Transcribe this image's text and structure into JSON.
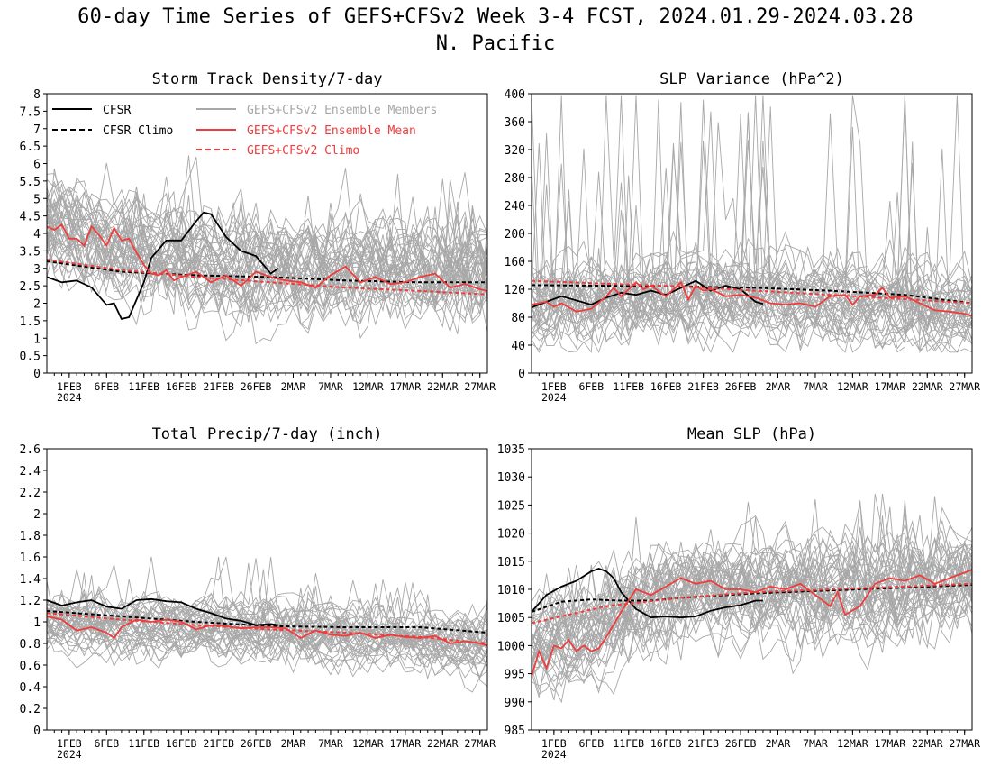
{
  "figure": {
    "title": "60-day Time Series of GEFS+CFSv2 Week 3-4 FCST, 2024.01.29-2024.03.28",
    "subtitle": "N. Pacific"
  },
  "chart_data": [
    {
      "type": "line",
      "title": "Storm Track Density/7-day",
      "x_tick_labels": [
        "1FEB",
        "6FEB",
        "11FEB",
        "16FEB",
        "21FEB",
        "26FEB",
        "2MAR",
        "7MAR",
        "12MAR",
        "17MAR",
        "22MAR",
        "27MAR"
      ],
      "x_tick_days": [
        3,
        8,
        13,
        18,
        23,
        28,
        33,
        38,
        43,
        48,
        53,
        58
      ],
      "x_year_label": "2024",
      "xlim": [
        0,
        59
      ],
      "ylim": [
        0,
        8
      ],
      "y_ticks": [
        0,
        0.5,
        1,
        1.5,
        2,
        2.5,
        3,
        3.5,
        4,
        4.5,
        5,
        5.5,
        6,
        6.5,
        7,
        7.5,
        8
      ],
      "y_tick_labels": [
        "0",
        "0.5",
        "1",
        "1.5",
        "2",
        "2.5",
        "3",
        "3.5",
        "4",
        "4.5",
        "5",
        "5.5",
        "6",
        "6.5",
        "7",
        "7.5",
        "8"
      ],
      "legend": [
        {
          "label": "CFSR",
          "color": "#000000",
          "dash": false
        },
        {
          "label": "CFSR Climo",
          "color": "#000000",
          "dash": true
        },
        {
          "label": "GEFS+CFSv2 Ensemble Members",
          "color": "#a8a8a8",
          "dash": false
        },
        {
          "label": "GEFS+CFSv2 Ensemble Mean",
          "color": "#f03c3c",
          "dash": false
        },
        {
          "label": "GEFS+CFSv2 Climo",
          "color": "#f03c3c",
          "dash": true
        }
      ],
      "series": [
        {
          "name": "CFSR",
          "color": "#000000",
          "dash": false,
          "x": [
            0,
            2,
            4,
            6,
            8,
            9,
            10,
            11,
            12,
            13,
            14,
            16,
            18,
            20,
            21,
            22,
            24,
            26,
            28,
            30,
            31
          ],
          "y": [
            2.75,
            2.6,
            2.65,
            2.45,
            1.95,
            2.0,
            1.55,
            1.6,
            2.1,
            2.6,
            3.3,
            3.8,
            3.8,
            4.35,
            4.6,
            4.55,
            3.9,
            3.5,
            3.35,
            2.85,
            3.0
          ]
        },
        {
          "name": "CFSR Climo",
          "color": "#000000",
          "dash": true,
          "x": [
            0,
            10,
            20,
            30,
            40,
            50,
            59
          ],
          "y": [
            3.2,
            2.9,
            2.8,
            2.75,
            2.65,
            2.6,
            2.6
          ]
        },
        {
          "name": "GEFS+CFSv2 Ensemble Mean",
          "color": "#f03c3c",
          "dash": false,
          "x": [
            0,
            1,
            2,
            3,
            4,
            5,
            6,
            7,
            8,
            9,
            10,
            11,
            12,
            13,
            14,
            15,
            16,
            17,
            18,
            20,
            22,
            24,
            26,
            28,
            30,
            32,
            34,
            36,
            38,
            40,
            42,
            44,
            46,
            48,
            50,
            52,
            54,
            56,
            58,
            59
          ],
          "y": [
            4.2,
            4.1,
            4.25,
            3.85,
            3.85,
            3.65,
            4.2,
            3.95,
            3.65,
            4.15,
            3.8,
            3.85,
            3.45,
            3.1,
            2.85,
            2.8,
            2.95,
            2.65,
            2.75,
            2.9,
            2.6,
            2.8,
            2.5,
            2.9,
            2.75,
            2.65,
            2.6,
            2.45,
            2.8,
            3.05,
            2.6,
            2.75,
            2.55,
            2.6,
            2.75,
            2.85,
            2.45,
            2.55,
            2.4,
            2.35
          ]
        },
        {
          "name": "GEFS+CFSv2 Climo",
          "color": "#f03c3c",
          "dash": true,
          "x": [
            0,
            10,
            20,
            30,
            40,
            50,
            59
          ],
          "y": [
            3.25,
            2.95,
            2.75,
            2.6,
            2.45,
            2.35,
            2.25
          ]
        }
      ],
      "ensemble": {
        "color": "#a8a8a8",
        "count": 44,
        "center": [
          0,
          4.2,
          10,
          3.6,
          20,
          3.2,
          30,
          3.0,
          40,
          3.0,
          50,
          2.9,
          59,
          2.8
        ],
        "spread": 1.3,
        "spike": 0.6,
        "ymin": 0.1,
        "ymax": 7.9
      }
    },
    {
      "type": "line",
      "title": "SLP Variance (hPa^2)",
      "x_tick_labels": [
        "1FEB",
        "6FEB",
        "11FEB",
        "16FEB",
        "21FEB",
        "26FEB",
        "2MAR",
        "7MAR",
        "12MAR",
        "17MAR",
        "22MAR",
        "27MAR"
      ],
      "x_tick_days": [
        3,
        8,
        13,
        18,
        23,
        28,
        33,
        38,
        43,
        48,
        53,
        58
      ],
      "x_year_label": "2024",
      "xlim": [
        0,
        59
      ],
      "ylim": [
        0,
        400
      ],
      "y_ticks": [
        0,
        40,
        80,
        120,
        160,
        200,
        240,
        280,
        320,
        360,
        400
      ],
      "y_tick_labels": [
        "0",
        "40",
        "80",
        "120",
        "160",
        "200",
        "240",
        "280",
        "320",
        "360",
        "400"
      ],
      "series": [
        {
          "name": "CFSR",
          "color": "#000000",
          "dash": false,
          "x": [
            0,
            2,
            4,
            6,
            8,
            10,
            12,
            14,
            16,
            18,
            20,
            22,
            24,
            26,
            28,
            30,
            31
          ],
          "y": [
            94,
            102,
            110,
            104,
            98,
            108,
            115,
            112,
            118,
            112,
            122,
            132,
            118,
            125,
            120,
            102,
            99
          ]
        },
        {
          "name": "CFSR Climo",
          "color": "#000000",
          "dash": true,
          "x": [
            0,
            10,
            20,
            30,
            40,
            50,
            59
          ],
          "y": [
            126,
            125,
            124,
            122,
            118,
            112,
            100
          ]
        },
        {
          "name": "GEFS+CFSv2 Ensemble Mean",
          "color": "#f03c3c",
          "dash": false,
          "x": [
            0,
            2,
            3,
            4,
            6,
            8,
            10,
            11,
            12,
            14,
            15,
            16,
            18,
            20,
            21,
            22,
            23,
            24,
            26,
            28,
            30,
            32,
            34,
            36,
            38,
            40,
            42,
            43,
            44,
            46,
            47,
            48,
            50,
            52,
            54,
            56,
            58,
            59
          ],
          "y": [
            98,
            102,
            95,
            100,
            88,
            92,
            110,
            122,
            110,
            130,
            120,
            125,
            110,
            130,
            105,
            125,
            118,
            120,
            110,
            112,
            108,
            100,
            98,
            100,
            95,
            110,
            112,
            98,
            110,
            112,
            122,
            108,
            110,
            100,
            90,
            88,
            85,
            82
          ]
        },
        {
          "name": "GEFS+CFSv2 Climo",
          "color": "#f03c3c",
          "dash": true,
          "x": [
            0,
            10,
            20,
            30,
            40,
            50,
            59
          ],
          "y": [
            132,
            128,
            124,
            118,
            112,
            106,
            100
          ]
        }
      ],
      "ensemble": {
        "color": "#a8a8a8",
        "count": 40,
        "center": [
          0,
          105,
          10,
          112,
          20,
          120,
          30,
          115,
          40,
          110,
          50,
          105,
          59,
          95
        ],
        "spread": 55,
        "spike": 90,
        "ymin": 30,
        "ymax": 398
      }
    },
    {
      "type": "line",
      "title": "Total Precip/7-day (inch)",
      "x_tick_labels": [
        "1FEB",
        "6FEB",
        "11FEB",
        "16FEB",
        "21FEB",
        "26FEB",
        "2MAR",
        "7MAR",
        "12MAR",
        "17MAR",
        "22MAR",
        "27MAR"
      ],
      "x_tick_days": [
        3,
        8,
        13,
        18,
        23,
        28,
        33,
        38,
        43,
        48,
        53,
        58
      ],
      "x_year_label": "2024",
      "xlim": [
        0,
        59
      ],
      "ylim": [
        0,
        2.6
      ],
      "y_ticks": [
        0,
        0.2,
        0.4,
        0.6,
        0.8,
        1,
        1.2,
        1.4,
        1.6,
        1.8,
        2,
        2.2,
        2.4,
        2.6
      ],
      "y_tick_labels": [
        "0",
        "0.2",
        "0.4",
        "0.6",
        "0.8",
        "1",
        "1.2",
        "1.4",
        "1.6",
        "1.8",
        "2",
        "2.2",
        "2.4",
        "2.6"
      ],
      "series": [
        {
          "name": "CFSR",
          "color": "#000000",
          "dash": false,
          "x": [
            0,
            2,
            4,
            6,
            8,
            10,
            12,
            14,
            16,
            18,
            20,
            22,
            24,
            26,
            28,
            30,
            31
          ],
          "y": [
            1.2,
            1.15,
            1.18,
            1.2,
            1.14,
            1.12,
            1.2,
            1.21,
            1.19,
            1.18,
            1.12,
            1.08,
            1.03,
            1.01,
            0.97,
            0.98,
            0.97
          ]
        },
        {
          "name": "CFSR Climo",
          "color": "#000000",
          "dash": true,
          "x": [
            0,
            10,
            20,
            30,
            40,
            50,
            59
          ],
          "y": [
            1.1,
            1.05,
            1.0,
            0.96,
            0.95,
            0.95,
            0.9
          ]
        },
        {
          "name": "GEFS+CFSv2 Ensemble Mean",
          "color": "#f03c3c",
          "dash": false,
          "x": [
            0,
            2,
            4,
            6,
            8,
            9,
            10,
            12,
            14,
            16,
            18,
            20,
            22,
            24,
            26,
            28,
            30,
            32,
            34,
            36,
            38,
            40,
            42,
            44,
            46,
            48,
            50,
            52,
            54,
            56,
            58,
            59
          ],
          "y": [
            1.05,
            1.02,
            0.92,
            0.95,
            0.9,
            0.85,
            0.95,
            1.02,
            1.0,
            1.02,
            1.0,
            0.93,
            0.97,
            0.96,
            0.94,
            0.95,
            0.95,
            0.94,
            0.85,
            0.92,
            0.88,
            0.87,
            0.9,
            0.85,
            0.88,
            0.86,
            0.85,
            0.87,
            0.8,
            0.82,
            0.8,
            0.78
          ]
        },
        {
          "name": "GEFS+CFSv2 Climo",
          "color": "#f03c3c",
          "dash": true,
          "x": [
            0,
            10,
            20,
            30,
            40,
            50,
            59
          ],
          "y": [
            1.08,
            1.02,
            0.97,
            0.93,
            0.9,
            0.86,
            0.8
          ]
        }
      ],
      "ensemble": {
        "color": "#a8a8a8",
        "count": 40,
        "center": [
          0,
          1.0,
          10,
          1.0,
          20,
          0.98,
          30,
          0.95,
          40,
          0.9,
          50,
          0.85,
          59,
          0.8
        ],
        "spread": 0.25,
        "spike": 0.15,
        "ymin": 0.35,
        "ymax": 1.6
      }
    },
    {
      "type": "line",
      "title": "Mean SLP (hPa)",
      "x_tick_labels": [
        "1FEB",
        "6FEB",
        "11FEB",
        "16FEB",
        "21FEB",
        "26FEB",
        "2MAR",
        "7MAR",
        "12MAR",
        "17MAR",
        "22MAR",
        "27MAR"
      ],
      "x_tick_days": [
        3,
        8,
        13,
        18,
        23,
        28,
        33,
        38,
        43,
        48,
        53,
        58
      ],
      "x_year_label": "2024",
      "xlim": [
        0,
        59
      ],
      "ylim": [
        985,
        1035
      ],
      "y_ticks": [
        985,
        990,
        995,
        1000,
        1005,
        1010,
        1015,
        1020,
        1025,
        1030,
        1035
      ],
      "y_tick_labels": [
        "985",
        "990",
        "995",
        "1000",
        "1005",
        "1010",
        "1015",
        "1020",
        "1025",
        "1030",
        "1035"
      ],
      "series": [
        {
          "name": "CFSR",
          "color": "#000000",
          "dash": false,
          "x": [
            0,
            2,
            4,
            6,
            8,
            9,
            10,
            11,
            12,
            14,
            16,
            18,
            20,
            22,
            24,
            26,
            28,
            30,
            31
          ],
          "y": [
            1006,
            1009,
            1010.5,
            1011.5,
            1013.2,
            1013.7,
            1013.2,
            1012,
            1009.5,
            1006.5,
            1005,
            1005.2,
            1005,
            1005.2,
            1006.2,
            1006.8,
            1007.2,
            1008,
            1008
          ]
        },
        {
          "name": "CFSR Climo",
          "color": "#000000",
          "dash": true,
          "x": [
            0,
            4,
            8,
            12,
            16,
            20,
            30,
            40,
            50,
            59
          ],
          "y": [
            1006,
            1007.8,
            1008.2,
            1008,
            1008,
            1008.5,
            1009.3,
            1009.8,
            1010.3,
            1010.8
          ]
        },
        {
          "name": "GEFS+CFSv2 Ensemble Mean",
          "color": "#f03c3c",
          "dash": false,
          "x": [
            0,
            1,
            2,
            3,
            4,
            5,
            6,
            7,
            8,
            9,
            10,
            12,
            14,
            16,
            18,
            20,
            22,
            24,
            26,
            28,
            30,
            32,
            34,
            36,
            38,
            40,
            41,
            42,
            44,
            46,
            48,
            50,
            52,
            54,
            56,
            58,
            59
          ],
          "y": [
            994.5,
            999,
            996,
            1000,
            999.5,
            1001,
            999,
            1000,
            999,
            999.5,
            1001.5,
            1006,
            1010,
            1009,
            1010.5,
            1012,
            1011,
            1011.5,
            1010,
            1010,
            1009.5,
            1010.5,
            1010,
            1011,
            1009,
            1007,
            1009.5,
            1005.5,
            1007,
            1011,
            1012,
            1011.5,
            1012.5,
            1011,
            1012,
            1013,
            1013.5
          ]
        },
        {
          "name": "GEFS+CFSv2 Climo",
          "color": "#f03c3c",
          "dash": true,
          "x": [
            0,
            10,
            20,
            30,
            40,
            50,
            59
          ],
          "y": [
            1004,
            1007,
            1008.5,
            1009.5,
            1010,
            1010.5,
            1011
          ]
        }
      ],
      "ensemble": {
        "color": "#a8a8a8",
        "count": 44,
        "center": [
          0,
          1000,
          5,
          1001.5,
          10,
          1004,
          15,
          1008,
          20,
          1010,
          30,
          1010,
          40,
          1010,
          50,
          1010.5,
          59,
          1012
        ],
        "spread": 8.5,
        "spike": 4,
        "ymin": 985.3,
        "ymax": 1027
      }
    }
  ]
}
